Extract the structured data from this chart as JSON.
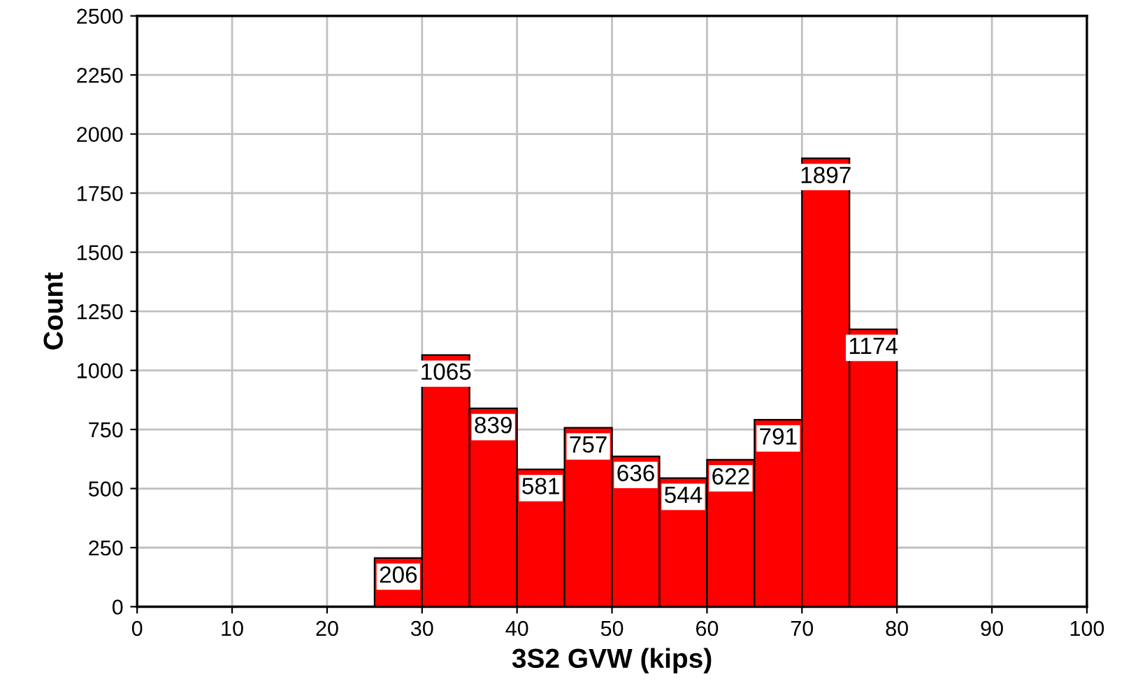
{
  "chart_data": {
    "type": "histogram",
    "xlabel": "3S2 GVW (kips)",
    "ylabel": "Count",
    "bins": [
      25,
      30,
      35,
      40,
      45,
      50,
      55,
      60,
      65,
      70,
      75,
      80
    ],
    "values": [
      206,
      1065,
      839,
      581,
      757,
      636,
      544,
      622,
      791,
      1897,
      1174
    ],
    "color": "#ff0000",
    "xlim": [
      0,
      100
    ],
    "xticks": [
      0,
      10,
      20,
      30,
      40,
      50,
      60,
      70,
      80,
      90,
      100
    ],
    "ylim": [
      0,
      2500
    ],
    "yticks": [
      0,
      250,
      500,
      750,
      1000,
      1250,
      1500,
      1750,
      2000,
      2250,
      2500
    ],
    "grid": true,
    "data_labels": true
  }
}
